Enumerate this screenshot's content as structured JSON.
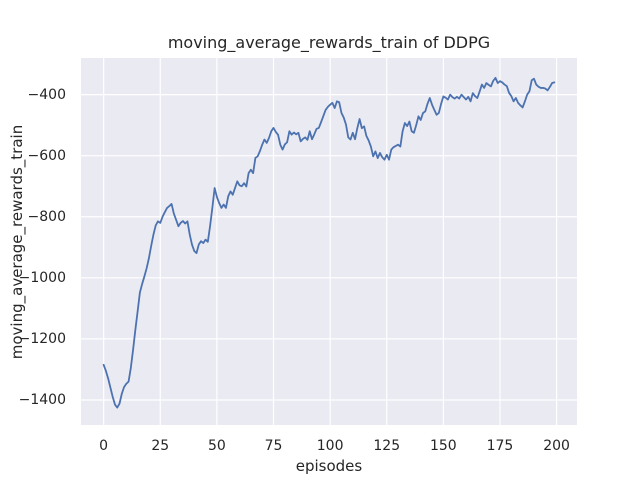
{
  "window": {
    "kind": "matplotlib-figure"
  },
  "chart_data": {
    "type": "line",
    "title": "moving_average_rewards_train of DDPG",
    "xlabel": "episodes",
    "ylabel": "moving_average_rewards_train",
    "legend": "none",
    "grid": true,
    "style": "seaborn-darkgrid",
    "axes_background": "#EAEAF2",
    "grid_color": "#FFFFFF",
    "line_color": "#4C72B0",
    "text_color": "#262626",
    "x_ticks": [
      0,
      25,
      50,
      75,
      100,
      125,
      150,
      175,
      200
    ],
    "y_ticks": [
      -400,
      -600,
      -800,
      -1000,
      -1200,
      -1400
    ],
    "xlim": [
      -10,
      209
    ],
    "ylim": [
      -1482,
      -280
    ],
    "series": [
      {
        "name": "moving_average_rewards_train",
        "x_start": 0,
        "x_step": 1,
        "values": [
          -1285,
          -1305,
          -1330,
          -1360,
          -1390,
          -1415,
          -1425,
          -1412,
          -1380,
          -1358,
          -1347,
          -1340,
          -1295,
          -1235,
          -1170,
          -1110,
          -1048,
          -1020,
          -995,
          -968,
          -935,
          -895,
          -858,
          -828,
          -815,
          -820,
          -800,
          -785,
          -771,
          -765,
          -758,
          -790,
          -810,
          -831,
          -820,
          -814,
          -822,
          -815,
          -858,
          -891,
          -912,
          -919,
          -891,
          -880,
          -886,
          -875,
          -882,
          -830,
          -770,
          -706,
          -735,
          -755,
          -771,
          -760,
          -771,
          -733,
          -717,
          -728,
          -706,
          -684,
          -697,
          -700,
          -690,
          -701,
          -657,
          -646,
          -657,
          -607,
          -602,
          -585,
          -564,
          -547,
          -558,
          -542,
          -520,
          -509,
          -522,
          -531,
          -564,
          -580,
          -563,
          -556,
          -520,
          -531,
          -524,
          -530,
          -525,
          -553,
          -545,
          -540,
          -548,
          -520,
          -546,
          -530,
          -512,
          -509,
          -490,
          -470,
          -450,
          -440,
          -433,
          -427,
          -444,
          -422,
          -425,
          -460,
          -475,
          -498,
          -540,
          -547,
          -525,
          -546,
          -510,
          -480,
          -510,
          -504,
          -535,
          -550,
          -570,
          -602,
          -586,
          -608,
          -591,
          -605,
          -613,
          -597,
          -613,
          -580,
          -572,
          -568,
          -564,
          -570,
          -520,
          -493,
          -503,
          -488,
          -520,
          -525,
          -500,
          -471,
          -483,
          -460,
          -455,
          -430,
          -411,
          -433,
          -450,
          -466,
          -460,
          -430,
          -406,
          -410,
          -416,
          -400,
          -408,
          -413,
          -407,
          -413,
          -400,
          -408,
          -416,
          -407,
          -422,
          -395,
          -405,
          -411,
          -390,
          -367,
          -378,
          -362,
          -368,
          -373,
          -355,
          -345,
          -362,
          -356,
          -360,
          -367,
          -372,
          -394,
          -405,
          -422,
          -411,
          -427,
          -435,
          -442,
          -422,
          -400,
          -389,
          -353,
          -348,
          -367,
          -374,
          -378,
          -378,
          -380,
          -386,
          -375,
          -362,
          -360
        ]
      }
    ]
  }
}
